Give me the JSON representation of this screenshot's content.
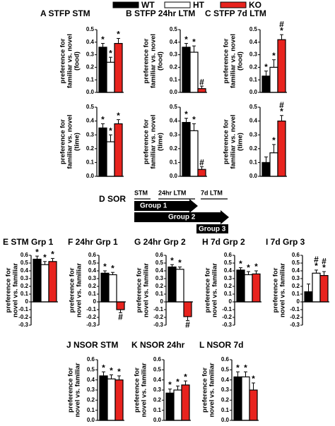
{
  "legend": [
    {
      "name": "WT",
      "color": "#000000"
    },
    {
      "name": "HT",
      "color": "#ffffff"
    },
    {
      "name": "KO",
      "color": "#e8231e"
    }
  ],
  "sor_diagram": {
    "title": "D SOR",
    "phases": [
      "STM",
      "24hr LTM",
      "7d LTM"
    ],
    "groups": [
      "Group 1",
      "Group 2",
      "Group 3"
    ]
  },
  "chart_data": [
    {
      "type": "bar",
      "title": "A STFP STM",
      "ylabel": [
        "preference for",
        "familiar vs. novel",
        "(food)"
      ],
      "values": [
        0.36,
        0.24,
        0.39
      ],
      "errors": [
        0.03,
        0.04,
        0.04
      ],
      "annotations": [
        [
          "*"
        ],
        [
          "*"
        ],
        [
          "*"
        ]
      ],
      "ylim": [
        0,
        0.5
      ],
      "yticks": [
        {
          "value": 0,
          "label": "0.0"
        },
        0.1,
        0.2,
        0.3,
        0.4,
        0.5
      ]
    },
    {
      "type": "bar",
      "title": "B STFP 24hr LTM",
      "ylabel": [
        "preference for",
        "familiar vs. novel",
        "(food)"
      ],
      "values": [
        0.36,
        0.32,
        0.03
      ],
      "errors": [
        0.03,
        0.05,
        0.02
      ],
      "annotations": [
        [
          "*"
        ],
        [
          "*"
        ],
        [
          "#"
        ]
      ],
      "ylim": [
        0,
        0.5
      ],
      "yticks": [
        {
          "value": 0,
          "label": "0.0"
        },
        0.1,
        0.2,
        0.3,
        0.4,
        0.5
      ]
    },
    {
      "type": "bar",
      "title": "C STFP 7d LTM",
      "ylabel": [
        "preference for",
        "familiar vs. novel",
        "(food)"
      ],
      "values": [
        0.13,
        0.2,
        0.42
      ],
      "errors": [
        0.04,
        0.06,
        0.04
      ],
      "annotations": [
        [
          "*"
        ],
        [
          "*"
        ],
        [
          "#",
          "*"
        ]
      ],
      "ylim": [
        0,
        0.5
      ],
      "yticks": [
        {
          "value": 0,
          "label": "0.0"
        },
        0.1,
        0.2,
        0.3,
        0.4,
        0.5
      ]
    },
    {
      "type": "bar",
      "ylabel": [
        "preference for",
        "familiar vs. novel",
        "(time)"
      ],
      "values": [
        0.35,
        0.25,
        0.38
      ],
      "errors": [
        0.03,
        0.05,
        0.03
      ],
      "annotations": [
        [
          "*"
        ],
        [
          "*"
        ],
        [
          "*"
        ]
      ],
      "ylim": [
        0,
        0.5
      ],
      "yticks": [
        {
          "value": 0,
          "label": "0.0"
        },
        0.1,
        0.2,
        0.3,
        0.4,
        0.5
      ]
    },
    {
      "type": "bar",
      "ylabel": [
        "preference for",
        "familiar vs. novel",
        "(time)"
      ],
      "values": [
        0.39,
        0.33,
        0.05
      ],
      "errors": [
        0.03,
        0.05,
        0.02
      ],
      "annotations": [
        [
          "*"
        ],
        [
          "*"
        ],
        [
          "#"
        ]
      ],
      "ylim": [
        0,
        0.5
      ],
      "yticks": [
        {
          "value": 0,
          "label": "0.0"
        },
        0.1,
        0.2,
        0.3,
        0.4,
        0.5
      ]
    },
    {
      "type": "bar",
      "ylabel": [
        "preference for",
        "familiar vs. novel",
        "(time)"
      ],
      "values": [
        0.1,
        0.17,
        0.4
      ],
      "errors": [
        0.04,
        0.06,
        0.04
      ],
      "annotations": [
        null,
        [
          "*"
        ],
        [
          "#",
          "*"
        ]
      ],
      "ylim": [
        0,
        0.5
      ],
      "yticks": [
        {
          "value": 0,
          "label": "0.0"
        },
        0.1,
        0.2,
        0.3,
        0.4,
        0.5
      ]
    },
    {
      "type": "bar",
      "title": "E STM Grp 1",
      "ylabel": [
        "preference for",
        "novel vs. familiar"
      ],
      "values": [
        0.55,
        0.48,
        0.52
      ],
      "errors": [
        0.04,
        0.04,
        0.04
      ],
      "annotations": [
        [
          "*"
        ],
        [
          "*"
        ],
        [
          "*"
        ]
      ],
      "ylim": [
        -0.3,
        0.6
      ],
      "yticks": [
        -0.3,
        -0.2,
        -0.1,
        0,
        0.1,
        0.2,
        0.3,
        0.4,
        0.5,
        0.6
      ]
    },
    {
      "type": "bar",
      "title": "F 24hr Grp 1",
      "ylabel": [
        "preference for",
        "novel vs. familiar"
      ],
      "values": [
        0.37,
        0.35,
        -0.1
      ],
      "errors": [
        0.03,
        0.03,
        0.04
      ],
      "annotations": [
        [
          "*"
        ],
        [
          "*"
        ],
        [
          "#"
        ]
      ],
      "ylim": [
        -0.3,
        0.6
      ],
      "yticks": [
        -0.3,
        -0.2,
        -0.1,
        0,
        0.1,
        0.2,
        0.3,
        0.4,
        0.5,
        0.6
      ]
    },
    {
      "type": "bar",
      "title": "G 24hr Grp 2",
      "ylabel": [
        "preference for",
        "novel vs. familiar"
      ],
      "values": [
        0.45,
        0.42,
        -0.19
      ],
      "errors": [
        0.03,
        0.03,
        0.05
      ],
      "annotations": [
        [
          "*"
        ],
        [
          "*"
        ],
        [
          "#"
        ]
      ],
      "ylim": [
        -0.3,
        0.6
      ],
      "yticks": [
        -0.3,
        -0.2,
        -0.1,
        0,
        0.1,
        0.2,
        0.3,
        0.4,
        0.5,
        0.6
      ]
    },
    {
      "type": "bar",
      "title": "H 7d Grp 2",
      "ylabel": [
        "preference for",
        "novel vs. familiar"
      ],
      "values": [
        0.41,
        0.35,
        0.36
      ],
      "errors": [
        0.03,
        0.04,
        0.04
      ],
      "annotations": [
        [
          "*"
        ],
        [
          "*"
        ],
        [
          "*"
        ]
      ],
      "ylim": [
        -0.3,
        0.6
      ],
      "yticks": [
        -0.3,
        -0.2,
        -0.1,
        0,
        0.1,
        0.2,
        0.3,
        0.4,
        0.5,
        0.6
      ]
    },
    {
      "type": "bar",
      "title": "I 7d Grp 3",
      "ylabel": [
        "preference for",
        "novel vs. familiar"
      ],
      "values": [
        0.13,
        0.37,
        0.34
      ],
      "errors": [
        0.1,
        0.04,
        0.05
      ],
      "annotations": [
        null,
        [
          "#",
          "*"
        ],
        [
          "#",
          "*"
        ]
      ],
      "ylim": [
        -0.3,
        0.6
      ],
      "yticks": [
        -0.3,
        -0.2,
        -0.1,
        0,
        0.1,
        0.2,
        0.3,
        0.4,
        0.5,
        0.6
      ]
    },
    {
      "type": "bar",
      "title": "J NSOR STM",
      "ylabel": [
        "preference for",
        "novel vs. familiar"
      ],
      "values": [
        0.44,
        0.41,
        0.4
      ],
      "errors": [
        0.04,
        0.04,
        0.04
      ],
      "annotations": [
        [
          "*"
        ],
        [
          "*"
        ],
        [
          "*"
        ]
      ],
      "ylim": [
        0,
        0.6
      ],
      "yticks": [
        {
          "value": 0,
          "label": "0.0"
        },
        0.1,
        0.2,
        0.3,
        0.4,
        0.5,
        0.6
      ]
    },
    {
      "type": "bar",
      "title": "K NSOR 24hr",
      "ylabel": [
        "preference for",
        "novel vs. familiar"
      ],
      "values": [
        0.27,
        0.3,
        0.35
      ],
      "errors": [
        0.04,
        0.04,
        0.04
      ],
      "annotations": [
        [
          "*"
        ],
        [
          "*"
        ],
        [
          "*"
        ]
      ],
      "ylim": [
        0,
        0.6
      ],
      "yticks": [
        {
          "value": 0,
          "label": "0.0"
        },
        0.1,
        0.2,
        0.3,
        0.4,
        0.5,
        0.6
      ]
    },
    {
      "type": "bar",
      "title": "L NSOR 7d",
      "ylabel": [
        "preference for",
        "novel vs. familiar"
      ],
      "values": [
        0.43,
        0.43,
        0.3
      ],
      "errors": [
        0.05,
        0.05,
        0.07
      ],
      "annotations": [
        [
          "*"
        ],
        [
          "*"
        ],
        [
          "*"
        ]
      ],
      "ylim": [
        0,
        0.6
      ],
      "yticks": [
        {
          "value": 0,
          "label": "0.0"
        },
        0.1,
        0.2,
        0.3,
        0.4,
        0.5,
        0.6
      ]
    }
  ]
}
